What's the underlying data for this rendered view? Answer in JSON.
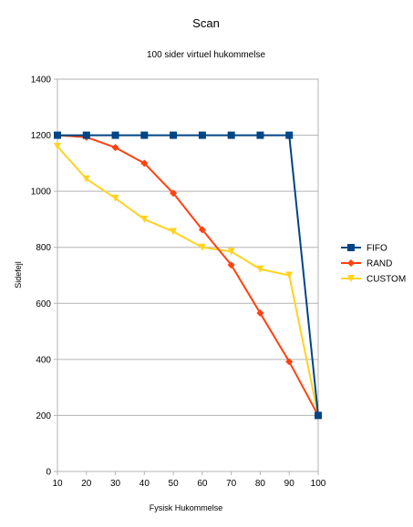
{
  "chart_data": {
    "type": "line",
    "title": "Scan",
    "subtitle": "100 sider virtuel hukommelse",
    "xlabel": "Fysisk Hukommelse",
    "ylabel": "Sidefejl",
    "x": [
      10,
      20,
      30,
      40,
      50,
      60,
      70,
      80,
      90,
      100
    ],
    "ylim": [
      0,
      1400
    ],
    "yticks": [
      0,
      200,
      400,
      600,
      800,
      1000,
      1200,
      1400
    ],
    "grid": true,
    "legend_position": "right",
    "series": [
      {
        "name": "FIFO",
        "color": "#004586",
        "marker": "square",
        "values": [
          1200,
          1200,
          1200,
          1200,
          1200,
          1200,
          1200,
          1200,
          1200,
          200
        ]
      },
      {
        "name": "RAND",
        "color": "#ff420e",
        "marker": "diamond",
        "values": [
          1200,
          1193,
          1156,
          1100,
          993,
          863,
          737,
          565,
          392,
          200
        ]
      },
      {
        "name": "CUSTOM",
        "color": "#ffd320",
        "marker": "triangle-down",
        "values": [
          1160,
          1044,
          975,
          900,
          856,
          800,
          785,
          722,
          700,
          200
        ]
      }
    ]
  }
}
